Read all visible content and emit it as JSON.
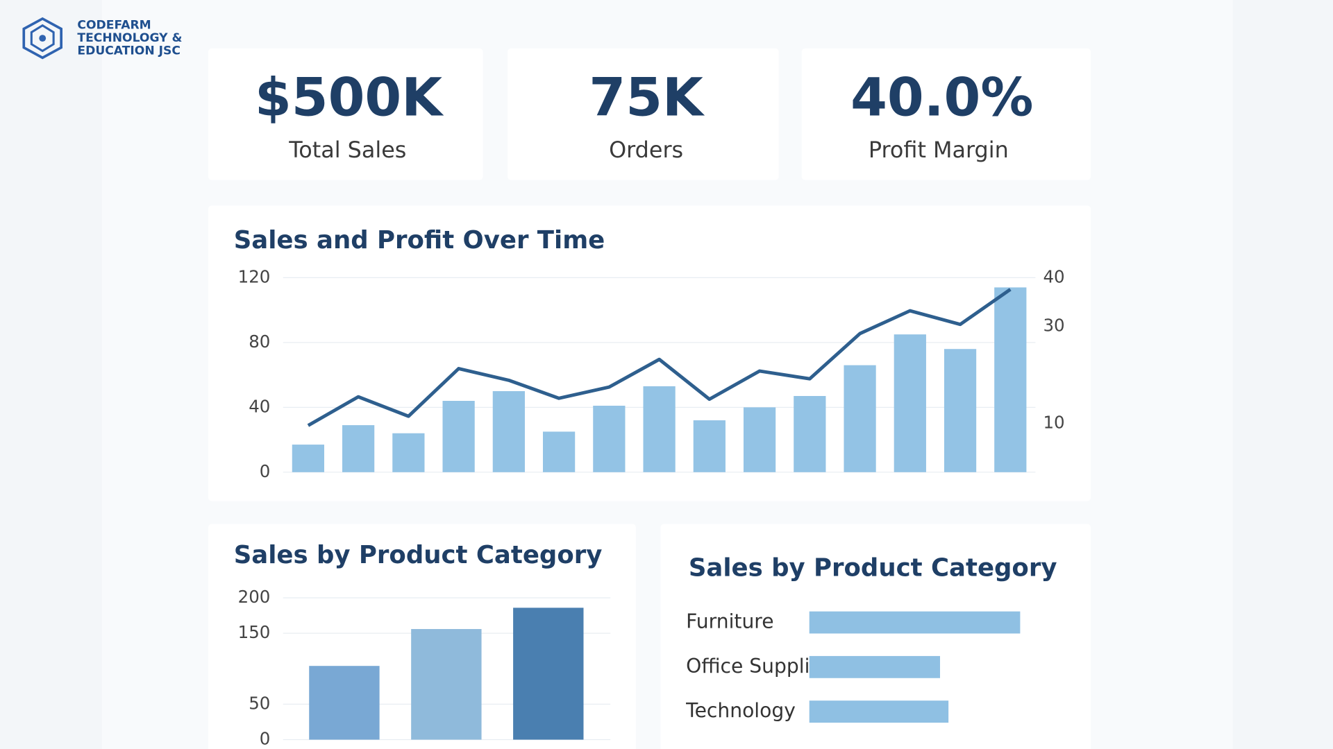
{
  "logo": {
    "lines": [
      "CODEFARM",
      "TECHNOLOGY &",
      "EDUCATION JSC"
    ]
  },
  "kpis": [
    {
      "value": "$500K",
      "label": "Total Sales"
    },
    {
      "value": "75K",
      "label": "Orders"
    },
    {
      "value": "40.0%",
      "label": "Profit Margin"
    }
  ],
  "chart_data": [
    {
      "type": "combo",
      "title": "Sales and Profit Over Time",
      "categories": [
        null,
        null,
        null,
        null,
        null,
        null,
        null,
        null,
        null,
        null,
        null,
        null,
        null,
        null,
        null
      ],
      "series": [
        {
          "color": "#93c3e5",
          "values": [
            17,
            29,
            24,
            44,
            50,
            25,
            41,
            53,
            32,
            40,
            47,
            66,
            85,
            76,
            114
          ]
        },
        {
          "color": "#2e5f8e",
          "axis": "y2",
          "values": [
            9.6,
            15.5,
            11.5,
            21.3,
            18.9,
            15.2,
            17.5,
            23.2,
            15.0,
            20.8,
            19.2,
            28.5,
            33.2,
            30.4,
            37.6
          ]
        }
      ],
      "ylim": [
        0,
        120
      ],
      "yticks": [
        0,
        40,
        80,
        120
      ],
      "y2lim": [
        0,
        40
      ],
      "y2ticks": [
        10,
        30,
        40
      ],
      "grid": true
    },
    {
      "type": "bar",
      "title": "Sales by Product Category",
      "categories": [
        null,
        null,
        null
      ],
      "values": [
        104,
        156,
        186
      ],
      "colors": [
        "#79a8d4",
        "#8fbadb",
        "#4a7fb0"
      ],
      "ylim": [
        0,
        200
      ],
      "yticks": [
        0,
        50,
        150,
        200
      ],
      "grid": true
    },
    {
      "type": "hbar",
      "title": "Sales by Product Category",
      "categories": [
        "Furniture",
        "Office Supplies",
        "Technology"
      ],
      "values": [
        100,
        62,
        66
      ],
      "color": "#8fc0e3",
      "xlim": [
        0,
        100
      ]
    }
  ]
}
